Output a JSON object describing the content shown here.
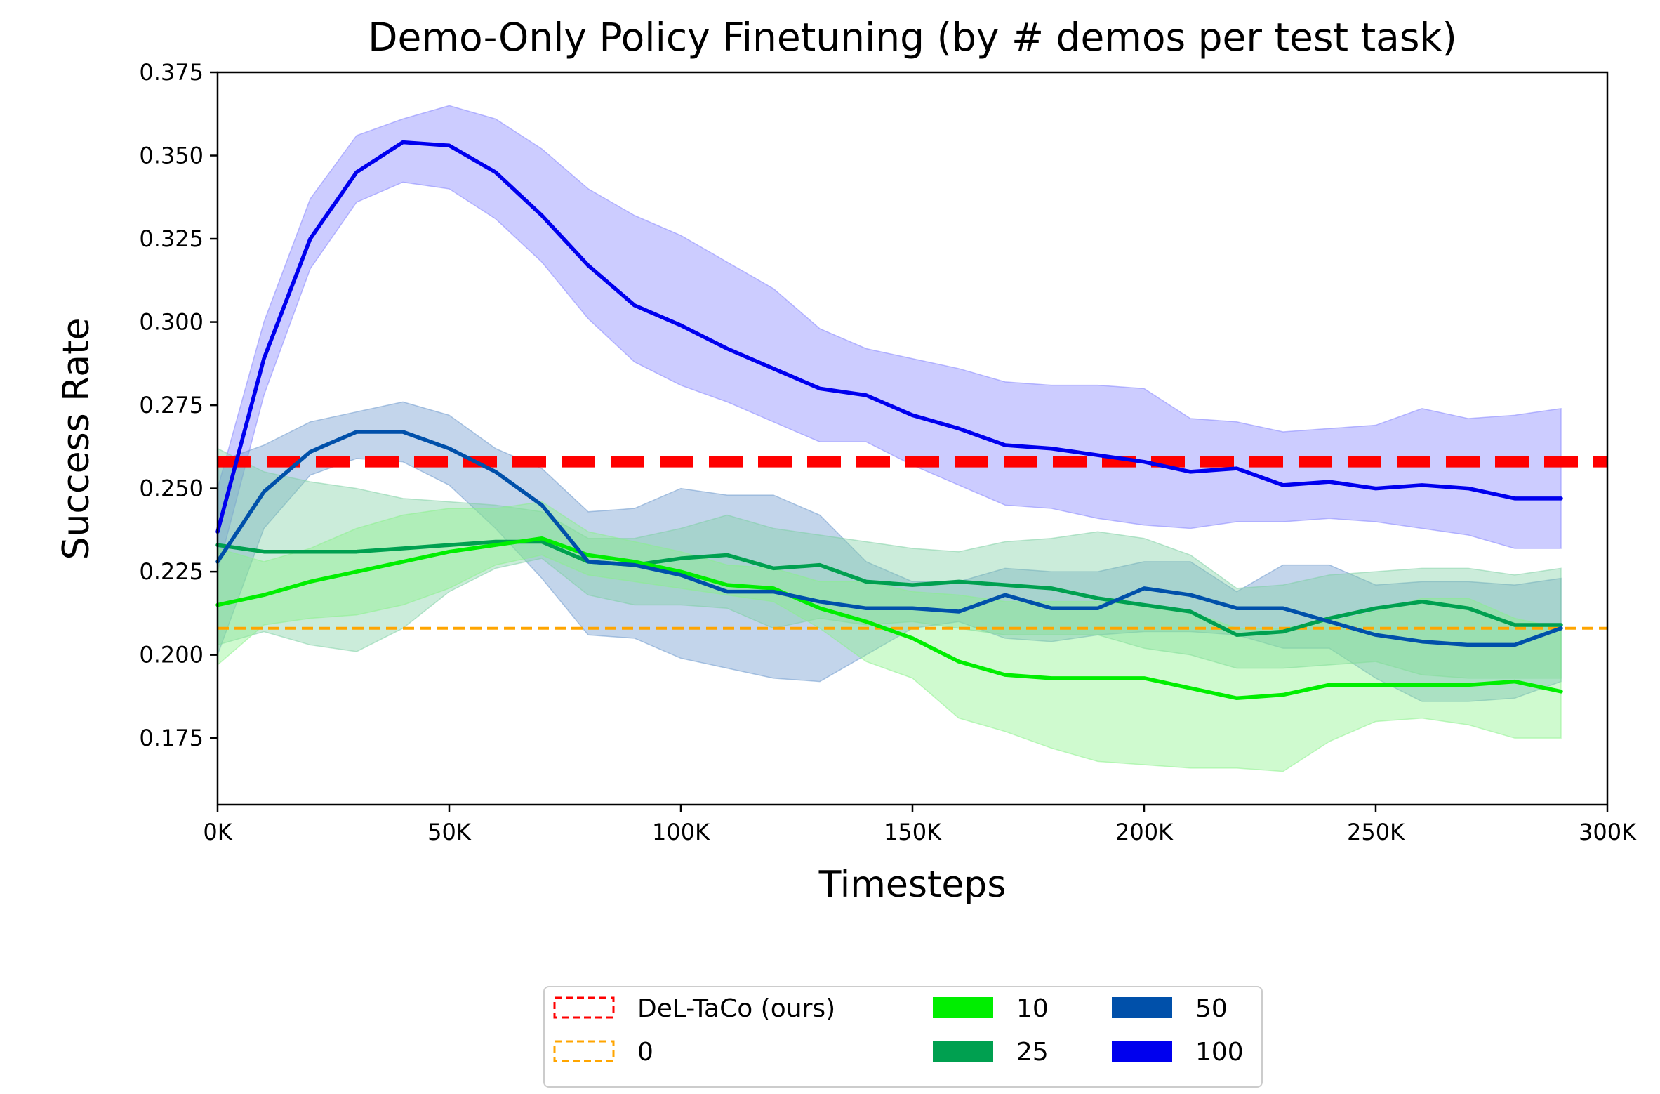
{
  "chart_data": {
    "type": "line",
    "title": "Demo-Only Policy Finetuning (by # demos per test task)",
    "xlabel": "Timesteps",
    "ylabel": "Success Rate",
    "xlim": [
      0,
      300000
    ],
    "ylim": [
      0.155,
      0.375
    ],
    "x_ticks": [
      0,
      50000,
      100000,
      150000,
      200000,
      250000,
      300000
    ],
    "x_tick_labels": [
      "0K",
      "50K",
      "100K",
      "150K",
      "200K",
      "250K",
      "300K"
    ],
    "y_ticks": [
      0.175,
      0.2,
      0.225,
      0.25,
      0.275,
      0.3,
      0.325,
      0.35,
      0.375
    ],
    "y_tick_labels": [
      "0.175",
      "0.200",
      "0.225",
      "0.250",
      "0.275",
      "0.300",
      "0.325",
      "0.350",
      "0.375"
    ],
    "grid": false,
    "legend_position": "bottom-center",
    "x": [
      0,
      10000,
      20000,
      30000,
      40000,
      50000,
      60000,
      70000,
      80000,
      90000,
      100000,
      110000,
      120000,
      130000,
      140000,
      150000,
      160000,
      170000,
      180000,
      190000,
      200000,
      210000,
      220000,
      230000,
      240000,
      250000,
      260000,
      270000,
      280000,
      290000
    ],
    "reference_lines": [
      {
        "name": "DeL-TaCo (ours)",
        "value": 0.258,
        "color": "#ff0000",
        "style": "dashed-thick"
      },
      {
        "name": "0",
        "value": 0.208,
        "color": "#ffa500",
        "style": "dashed"
      }
    ],
    "series": [
      {
        "name": "100",
        "color": "#0000ee",
        "fill": "#8080ff",
        "values": [
          0.237,
          0.289,
          0.325,
          0.345,
          0.354,
          0.353,
          0.345,
          0.332,
          0.317,
          0.305,
          0.299,
          0.292,
          0.286,
          0.28,
          0.278,
          0.272,
          0.268,
          0.263,
          0.262,
          0.26,
          0.258,
          0.255,
          0.256,
          0.251,
          0.252,
          0.25,
          0.251,
          0.25,
          0.247,
          0.247
        ],
        "lower": [
          0.225,
          0.278,
          0.316,
          0.336,
          0.342,
          0.34,
          0.331,
          0.318,
          0.301,
          0.288,
          0.281,
          0.276,
          0.27,
          0.264,
          0.264,
          0.257,
          0.251,
          0.245,
          0.244,
          0.241,
          0.239,
          0.238,
          0.24,
          0.24,
          0.241,
          0.24,
          0.238,
          0.236,
          0.232,
          0.232
        ],
        "upper": [
          0.25,
          0.3,
          0.337,
          0.356,
          0.361,
          0.365,
          0.361,
          0.352,
          0.34,
          0.332,
          0.326,
          0.318,
          0.31,
          0.298,
          0.292,
          0.289,
          0.286,
          0.282,
          0.281,
          0.281,
          0.28,
          0.271,
          0.27,
          0.267,
          0.268,
          0.269,
          0.274,
          0.271,
          0.272,
          0.274
        ]
      },
      {
        "name": "50",
        "color": "#0050aa",
        "fill": "#6896cc",
        "values": [
          0.228,
          0.249,
          0.261,
          0.267,
          0.267,
          0.262,
          0.255,
          0.245,
          0.228,
          0.227,
          0.224,
          0.219,
          0.219,
          0.216,
          0.214,
          0.214,
          0.213,
          0.218,
          0.214,
          0.214,
          0.22,
          0.218,
          0.214,
          0.214,
          0.21,
          0.206,
          0.204,
          0.203,
          0.203,
          0.208
        ],
        "lower": [
          0.2,
          0.238,
          0.254,
          0.259,
          0.258,
          0.251,
          0.238,
          0.223,
          0.206,
          0.205,
          0.199,
          0.196,
          0.193,
          0.192,
          0.2,
          0.208,
          0.21,
          0.205,
          0.204,
          0.206,
          0.207,
          0.207,
          0.206,
          0.202,
          0.202,
          0.193,
          0.186,
          0.186,
          0.187,
          0.192
        ],
        "upper": [
          0.258,
          0.263,
          0.27,
          0.273,
          0.276,
          0.272,
          0.262,
          0.256,
          0.243,
          0.244,
          0.25,
          0.248,
          0.248,
          0.242,
          0.228,
          0.222,
          0.222,
          0.226,
          0.225,
          0.225,
          0.228,
          0.228,
          0.219,
          0.227,
          0.227,
          0.221,
          0.222,
          0.222,
          0.221,
          0.223
        ]
      },
      {
        "name": "25",
        "color": "#00a050",
        "fill": "#7ccfa2",
        "values": [
          0.233,
          0.231,
          0.231,
          0.231,
          0.232,
          0.233,
          0.234,
          0.234,
          0.228,
          0.227,
          0.229,
          0.23,
          0.226,
          0.227,
          0.222,
          0.221,
          0.222,
          0.221,
          0.22,
          0.217,
          0.215,
          0.213,
          0.206,
          0.207,
          0.211,
          0.214,
          0.216,
          0.214,
          0.209,
          0.209
        ],
        "lower": [
          0.203,
          0.207,
          0.203,
          0.201,
          0.208,
          0.219,
          0.226,
          0.229,
          0.218,
          0.215,
          0.215,
          0.214,
          0.208,
          0.211,
          0.209,
          0.21,
          0.208,
          0.206,
          0.206,
          0.206,
          0.202,
          0.2,
          0.196,
          0.196,
          0.197,
          0.198,
          0.194,
          0.193,
          0.193,
          0.193
        ],
        "upper": [
          0.262,
          0.255,
          0.252,
          0.25,
          0.247,
          0.246,
          0.245,
          0.243,
          0.235,
          0.235,
          0.238,
          0.242,
          0.238,
          0.236,
          0.234,
          0.232,
          0.231,
          0.234,
          0.235,
          0.237,
          0.235,
          0.23,
          0.22,
          0.221,
          0.224,
          0.225,
          0.226,
          0.226,
          0.224,
          0.226
        ]
      },
      {
        "name": "10",
        "color": "#00ee00",
        "fill": "#88f288",
        "values": [
          0.215,
          0.218,
          0.222,
          0.225,
          0.228,
          0.231,
          0.233,
          0.235,
          0.23,
          0.228,
          0.225,
          0.221,
          0.22,
          0.214,
          0.21,
          0.205,
          0.198,
          0.194,
          0.193,
          0.193,
          0.193,
          0.19,
          0.187,
          0.188,
          0.191,
          0.191,
          0.191,
          0.191,
          0.192,
          0.189
        ],
        "lower": [
          0.197,
          0.209,
          0.211,
          0.212,
          0.215,
          0.22,
          0.227,
          0.23,
          0.224,
          0.222,
          0.22,
          0.218,
          0.216,
          0.208,
          0.198,
          0.193,
          0.181,
          0.177,
          0.172,
          0.168,
          0.167,
          0.166,
          0.166,
          0.165,
          0.174,
          0.18,
          0.181,
          0.179,
          0.175,
          0.175
        ],
        "upper": [
          0.232,
          0.228,
          0.232,
          0.238,
          0.242,
          0.244,
          0.244,
          0.246,
          0.237,
          0.234,
          0.231,
          0.227,
          0.226,
          0.222,
          0.222,
          0.219,
          0.218,
          0.216,
          0.216,
          0.216,
          0.215,
          0.213,
          0.208,
          0.208,
          0.21,
          0.213,
          0.217,
          0.217,
          0.211,
          0.208
        ]
      }
    ],
    "legend": [
      {
        "label": "DeL-TaCo (ours)",
        "kind": "dashed",
        "color": "#ff0000"
      },
      {
        "label": "0",
        "kind": "dashed",
        "color": "#ffa500"
      },
      {
        "label": "10",
        "kind": "patch",
        "color": "#00ee00"
      },
      {
        "label": "25",
        "kind": "patch",
        "color": "#00a050"
      },
      {
        "label": "50",
        "kind": "patch",
        "color": "#0050aa"
      },
      {
        "label": "100",
        "kind": "patch",
        "color": "#0000ee"
      }
    ]
  }
}
